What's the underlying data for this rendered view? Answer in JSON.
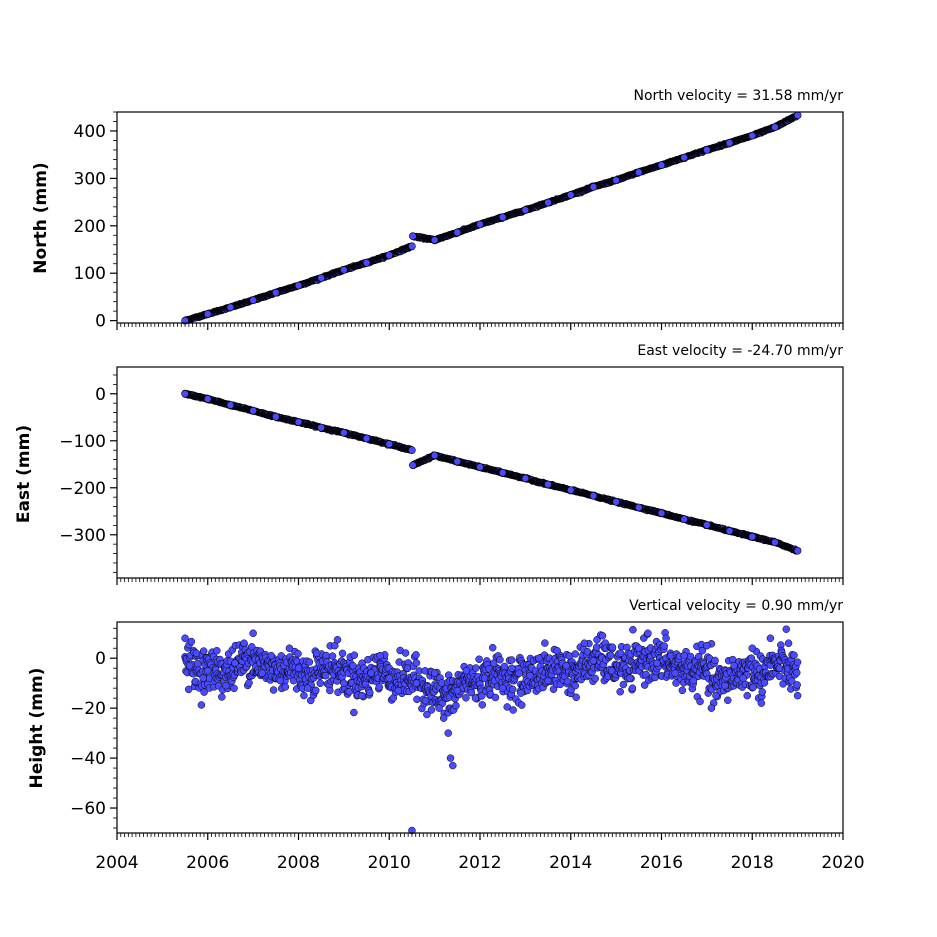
{
  "chart_data": [
    {
      "type": "scatter",
      "title": "North velocity = 31.58 mm/yr",
      "xlabel": "",
      "ylabel": "North (mm)",
      "xlim": [
        2004,
        2020
      ],
      "ylim": [
        -5,
        440
      ],
      "xticks": [
        2004,
        2006,
        2008,
        2010,
        2012,
        2014,
        2016,
        2018,
        2020
      ],
      "yticks": [
        0,
        100,
        200,
        300,
        400
      ],
      "ytick_labels": [
        "0",
        "100",
        "200",
        "300",
        "400"
      ],
      "xtick_labels_visible": false,
      "grid": false,
      "marker_color": "#4a4aff",
      "marker_edge": "#000000",
      "series": [
        {
          "x": [
            2005.5,
            2006.0,
            2006.5,
            2007.0,
            2007.5,
            2008.0,
            2008.5,
            2009.0,
            2009.5,
            2010.0,
            2010.5,
            2010.52,
            2011.0,
            2011.5,
            2012.0,
            2012.5,
            2013.0,
            2013.5,
            2014.0,
            2014.5,
            2015.0,
            2015.5,
            2016.0,
            2016.5,
            2017.0,
            2017.5,
            2018.0,
            2018.5,
            2019.0
          ],
          "y": [
            0,
            14,
            28,
            43,
            59,
            74,
            90,
            107,
            122,
            138,
            157,
            178,
            170,
            186,
            203,
            218,
            233,
            249,
            265,
            282,
            296,
            313,
            328,
            344,
            360,
            375,
            390,
            408,
            433
          ]
        }
      ]
    },
    {
      "type": "scatter",
      "title": "East velocity = -24.70 mm/yr",
      "xlabel": "",
      "ylabel": "East (mm)",
      "xlim": [
        2004,
        2020
      ],
      "ylim": [
        -392,
        57
      ],
      "xticks": [
        2004,
        2006,
        2008,
        2010,
        2012,
        2014,
        2016,
        2018,
        2020
      ],
      "yticks": [
        0,
        -100,
        -200,
        -300
      ],
      "ytick_labels": [
        "0",
        "−100",
        "−200",
        "−300"
      ],
      "xtick_labels_visible": false,
      "grid": false,
      "marker_color": "#4a4aff",
      "marker_edge": "#000000",
      "series": [
        {
          "x": [
            2005.5,
            2006.0,
            2006.5,
            2007.0,
            2007.5,
            2008.0,
            2008.5,
            2009.0,
            2009.5,
            2010.0,
            2010.5,
            2010.52,
            2011.0,
            2011.5,
            2012.0,
            2012.5,
            2013.0,
            2013.5,
            2014.0,
            2014.5,
            2015.0,
            2015.5,
            2016.0,
            2016.5,
            2017.0,
            2017.5,
            2018.0,
            2018.5,
            2019.0
          ],
          "y": [
            0,
            -11,
            -24,
            -36,
            -49,
            -60,
            -72,
            -83,
            -95,
            -107,
            -120,
            -152,
            -131,
            -144,
            -156,
            -168,
            -180,
            -193,
            -205,
            -217,
            -230,
            -242,
            -254,
            -267,
            -279,
            -292,
            -304,
            -316,
            -334
          ]
        }
      ]
    },
    {
      "type": "scatter",
      "title": "Vertical velocity = 0.90 mm/yr",
      "xlabel": "",
      "ylabel": "Height (mm)",
      "xlim": [
        2004,
        2020
      ],
      "ylim": [
        -70,
        14.5
      ],
      "xticks": [
        2004,
        2006,
        2008,
        2010,
        2012,
        2014,
        2016,
        2018,
        2020
      ],
      "xtick_labels": [
        "2004",
        "2006",
        "2008",
        "2010",
        "2012",
        "2014",
        "2016",
        "2018",
        "2020"
      ],
      "yticks": [
        0,
        -20,
        -40,
        -60
      ],
      "ytick_labels": [
        "0",
        "−20",
        "−40",
        "−60"
      ],
      "xtick_labels_visible": true,
      "grid": false,
      "marker_color": "#4a4aff",
      "marker_edge": "#000000",
      "series": [
        {
          "x": [
            2005.5,
            2005.6,
            2005.75,
            2005.9,
            2006.0,
            2006.2,
            2006.4,
            2006.6,
            2006.8,
            2007.0,
            2007.2,
            2007.4,
            2007.6,
            2007.8,
            2008.0,
            2008.2,
            2008.4,
            2008.6,
            2008.8,
            2009.0,
            2009.2,
            2009.4,
            2009.6,
            2009.8,
            2010.0,
            2010.2,
            2010.4,
            2010.5,
            2010.6,
            2010.8,
            2011.0,
            2011.1,
            2011.2,
            2011.3,
            2011.35,
            2011.4,
            2011.5,
            2011.7,
            2011.9,
            2012.1,
            2012.3,
            2012.5,
            2012.7,
            2012.9,
            2013.1,
            2013.3,
            2013.5,
            2013.7,
            2013.9,
            2014.1,
            2014.3,
            2014.5,
            2014.7,
            2014.9,
            2015.1,
            2015.3,
            2015.5,
            2015.7,
            2015.9,
            2016.1,
            2016.3,
            2016.5,
            2016.7,
            2016.9,
            2017.0,
            2017.1,
            2017.2,
            2017.4,
            2017.6,
            2017.8,
            2018.0,
            2018.2,
            2018.4,
            2018.6,
            2018.8,
            2019.0
          ],
          "y": [
            8,
            -3,
            2,
            -8,
            -5,
            3,
            -11,
            -2,
            6,
            10,
            -6,
            1,
            -9,
            4,
            -4,
            -12,
            2,
            -7,
            5,
            -10,
            -3,
            -15,
            -6,
            1,
            -8,
            -13,
            -4,
            -69,
            -10,
            -17,
            -6,
            -20,
            -24,
            -30,
            -40,
            -43,
            -13,
            -5,
            -16,
            -8,
            -2,
            -12,
            -4,
            -14,
            -7,
            0,
            -9,
            3,
            -3,
            -11,
            6,
            -1,
            9,
            -5,
            2,
            -8,
            4,
            10,
            -2,
            8,
            -6,
            1,
            -9,
            3,
            5,
            -20,
            -15,
            -11,
            -3,
            -8,
            4,
            -18,
            8,
            -4,
            6,
            -15
          ]
        }
      ]
    }
  ]
}
